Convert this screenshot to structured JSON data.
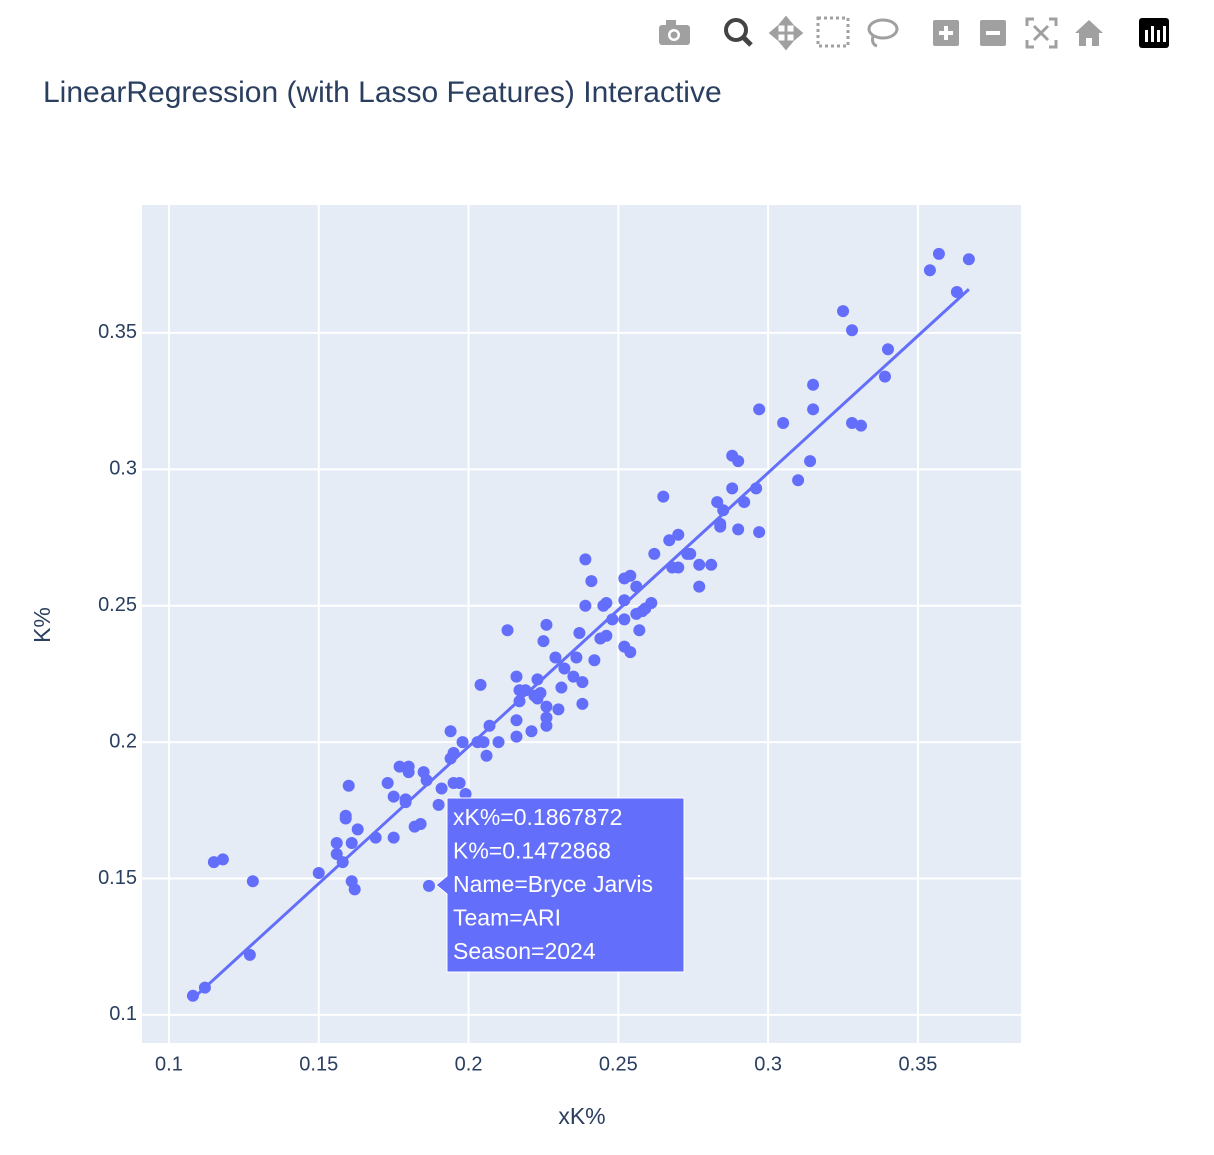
{
  "chart_data": {
    "type": "scatter",
    "title": "LinearRegression (with Lasso Features) Interactive",
    "x_label": "xK%",
    "y_label": "K%",
    "color": "#636efa",
    "grid": true,
    "xlim": [
      0.091,
      0.3844
    ],
    "ylim": [
      0.0897,
      0.3969
    ],
    "xticks": [
      0.1,
      0.15,
      0.2,
      0.25,
      0.3,
      0.35
    ],
    "yticks": [
      0.1,
      0.15,
      0.2,
      0.25,
      0.3,
      0.35
    ],
    "x": [
      0.108,
      0.112,
      0.115,
      0.118,
      0.127,
      0.128,
      0.15,
      0.156,
      0.156,
      0.158,
      0.159,
      0.159,
      0.16,
      0.161,
      0.162,
      0.161,
      0.163,
      0.169,
      0.173,
      0.175,
      0.175,
      0.177,
      0.179,
      0.179,
      0.18,
      0.18,
      0.182,
      0.184,
      0.185,
      0.186,
      0.1867872,
      0.19,
      0.191,
      0.194,
      0.194,
      0.195,
      0.195,
      0.197,
      0.198,
      0.199,
      0.203,
      0.205,
      0.204,
      0.206,
      0.207,
      0.21,
      0.213,
      0.216,
      0.216,
      0.216,
      0.217,
      0.217,
      0.219,
      0.221,
      0.222,
      0.223,
      0.223,
      0.224,
      0.225,
      0.226,
      0.226,
      0.226,
      0.226,
      0.229,
      0.23,
      0.231,
      0.232,
      0.235,
      0.236,
      0.237,
      0.238,
      0.238,
      0.239,
      0.239,
      0.241,
      0.242,
      0.244,
      0.245,
      0.246,
      0.246,
      0.248,
      0.252,
      0.252,
      0.252,
      0.252,
      0.254,
      0.254,
      0.256,
      0.256,
      0.257,
      0.258,
      0.259,
      0.261,
      0.262,
      0.265,
      0.267,
      0.268,
      0.27,
      0.27,
      0.273,
      0.274,
      0.277,
      0.277,
      0.281,
      0.283,
      0.284,
      0.284,
      0.285,
      0.288,
      0.288,
      0.29,
      0.29,
      0.292,
      0.296,
      0.297,
      0.297,
      0.305,
      0.31,
      0.314,
      0.315,
      0.315,
      0.325,
      0.328,
      0.328,
      0.331,
      0.339,
      0.34,
      0.354,
      0.357,
      0.363,
      0.367
    ],
    "y": [
      0.107,
      0.11,
      0.156,
      0.157,
      0.122,
      0.149,
      0.152,
      0.163,
      0.159,
      0.156,
      0.173,
      0.172,
      0.184,
      0.149,
      0.146,
      0.163,
      0.168,
      0.165,
      0.185,
      0.165,
      0.18,
      0.191,
      0.179,
      0.178,
      0.191,
      0.189,
      0.169,
      0.17,
      0.189,
      0.186,
      0.1472868,
      0.177,
      0.183,
      0.204,
      0.194,
      0.196,
      0.185,
      0.185,
      0.2,
      0.181,
      0.2,
      0.2,
      0.221,
      0.195,
      0.206,
      0.2,
      0.241,
      0.224,
      0.208,
      0.202,
      0.219,
      0.215,
      0.219,
      0.204,
      0.217,
      0.223,
      0.216,
      0.218,
      0.237,
      0.213,
      0.243,
      0.209,
      0.206,
      0.231,
      0.212,
      0.22,
      0.227,
      0.224,
      0.231,
      0.24,
      0.214,
      0.222,
      0.267,
      0.25,
      0.259,
      0.23,
      0.238,
      0.25,
      0.251,
      0.239,
      0.245,
      0.245,
      0.235,
      0.252,
      0.26,
      0.261,
      0.233,
      0.257,
      0.247,
      0.241,
      0.248,
      0.249,
      0.251,
      0.269,
      0.29,
      0.274,
      0.264,
      0.276,
      0.264,
      0.269,
      0.269,
      0.265,
      0.257,
      0.265,
      0.288,
      0.279,
      0.28,
      0.285,
      0.293,
      0.305,
      0.278,
      0.303,
      0.288,
      0.293,
      0.277,
      0.322,
      0.317,
      0.296,
      0.303,
      0.331,
      0.322,
      0.358,
      0.351,
      0.317,
      0.316,
      0.334,
      0.344,
      0.373,
      0.379,
      0.365,
      0.377
    ],
    "trendline": {
      "x": [
        0.109,
        0.367
      ],
      "y": [
        0.107,
        0.366
      ]
    },
    "tooltip": [
      "xK%=0.1867872",
      "K%=0.1472868",
      "Name=Bryce Jarvis",
      "Team=ARI",
      "Season=2024"
    ]
  }
}
